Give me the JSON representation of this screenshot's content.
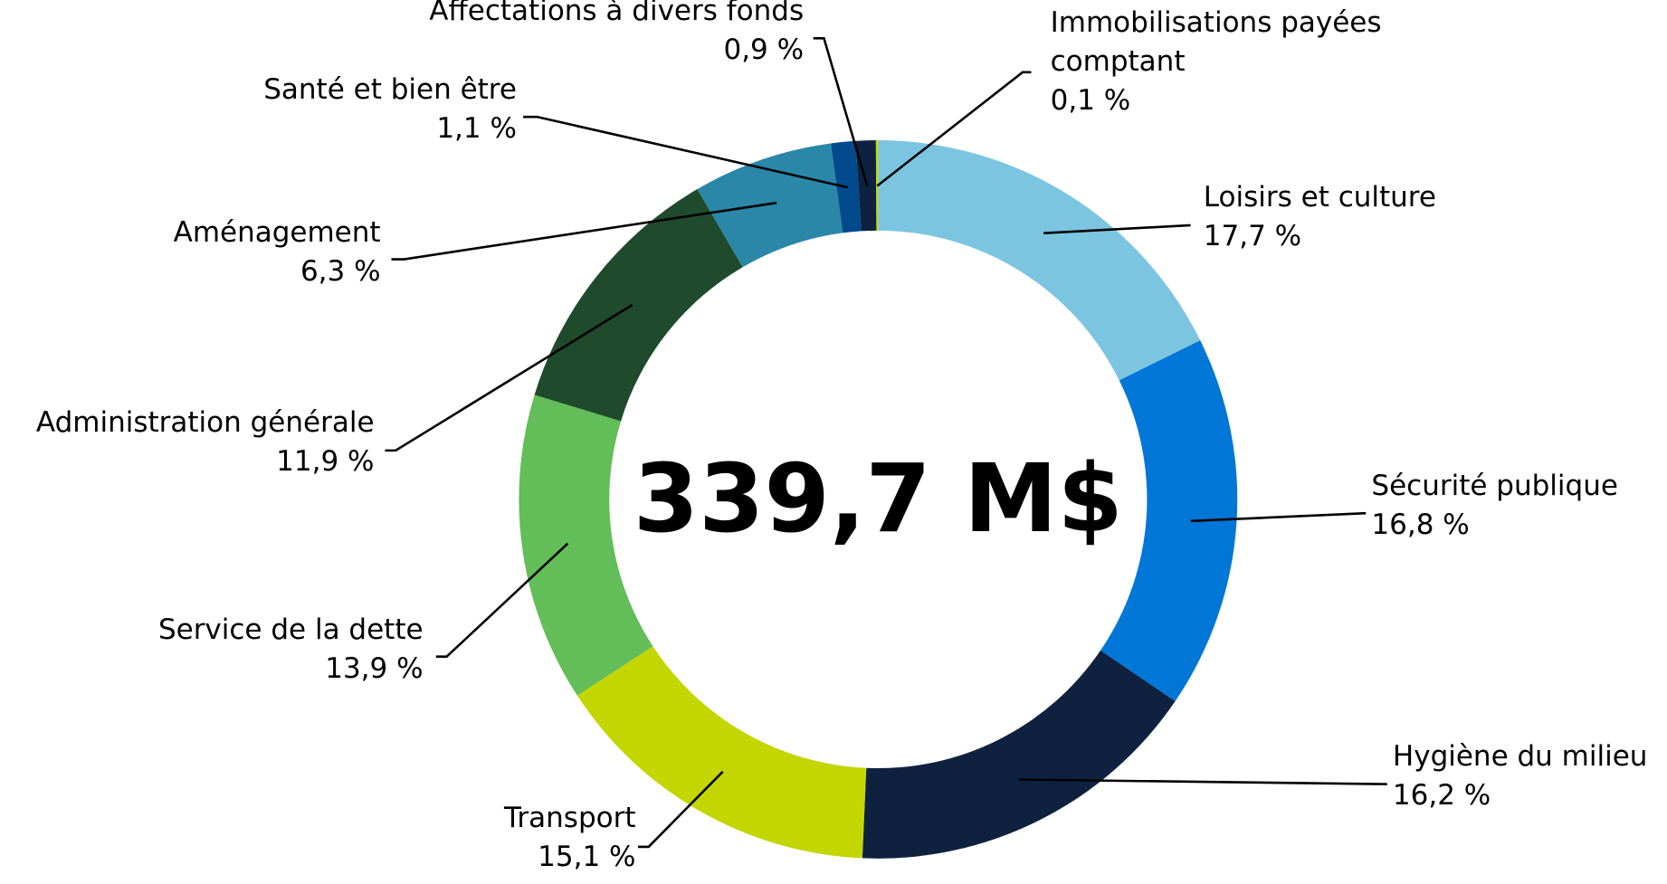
{
  "chart_data": {
    "type": "donut",
    "total_label": "339,7 M$",
    "categories": [
      "Loisirs et culture",
      "Sécurité publique",
      "Hygiène du milieu",
      "Transport",
      "Service de la dette",
      "Administration générale",
      "Aménagement",
      "Santé et bien être",
      "Affectations à divers fonds",
      "Immobilisations payées comptant"
    ],
    "values": [
      17.7,
      16.8,
      16.2,
      15.1,
      13.9,
      11.9,
      6.3,
      1.1,
      0.9,
      0.1
    ],
    "value_labels": [
      "17,7 %",
      "16,8 %",
      "16,2 %",
      "15,1 %",
      "13,9 %",
      "11,9 %",
      "6,3 %",
      "1,1 %",
      "0,9 %",
      "0,1 %"
    ],
    "colors": [
      "#7cc5e0",
      "#0077d6",
      "#0e2240",
      "#c4d600",
      "#63bd58",
      "#1f4a2c",
      "#2a87a8",
      "#004a8c",
      "#0e2240",
      "#c4d600"
    ]
  }
}
